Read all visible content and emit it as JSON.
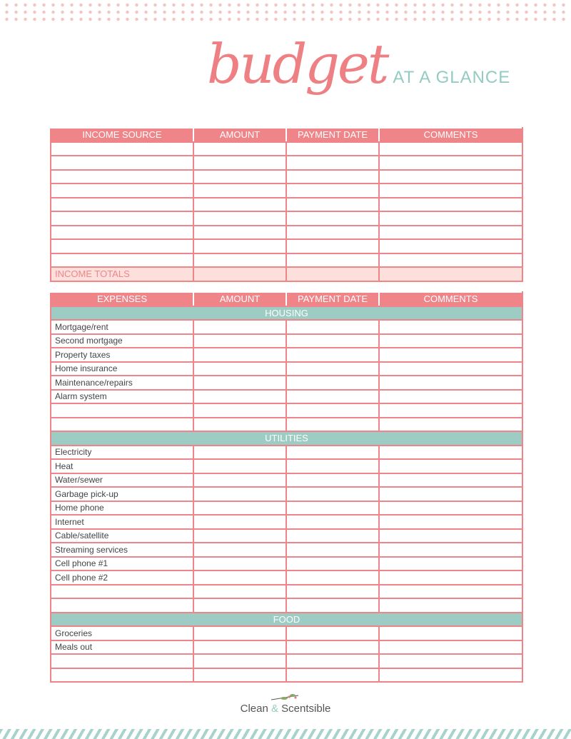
{
  "header": {
    "script_title": "budget",
    "subtitle": "AT A GLANCE"
  },
  "income": {
    "columns": [
      "INCOME SOURCE",
      "AMOUNT",
      "PAYMENT DATE",
      "COMMENTS"
    ],
    "blank_rows": 9,
    "totals_label": "INCOME TOTALS"
  },
  "expenses": {
    "columns": [
      "EXPENSES",
      "AMOUNT",
      "PAYMENT DATE",
      "COMMENTS"
    ],
    "sections": [
      {
        "name": "HOUSING",
        "items": [
          "Mortgage/rent",
          "Second mortgage",
          "Property taxes",
          "Home insurance",
          "Maintenance/repairs",
          "Alarm system",
          "",
          ""
        ]
      },
      {
        "name": "UTILITIES",
        "items": [
          "Electricity",
          "Heat",
          "Water/sewer",
          "Garbage pick-up",
          "Home phone",
          "Internet",
          "Cable/satellite",
          "Streaming services",
          "Cell phone #1",
          "Cell phone #2",
          "",
          ""
        ]
      },
      {
        "name": "FOOD",
        "items": [
          "Groceries",
          "Meals out",
          "",
          ""
        ]
      }
    ]
  },
  "footer": {
    "brand_left": "Clean",
    "brand_amp": "&",
    "brand_right": "Scentsible"
  },
  "colors": {
    "pink": "#ef8589",
    "teal": "#9dccc4",
    "totals_bg": "#fde0dc"
  }
}
